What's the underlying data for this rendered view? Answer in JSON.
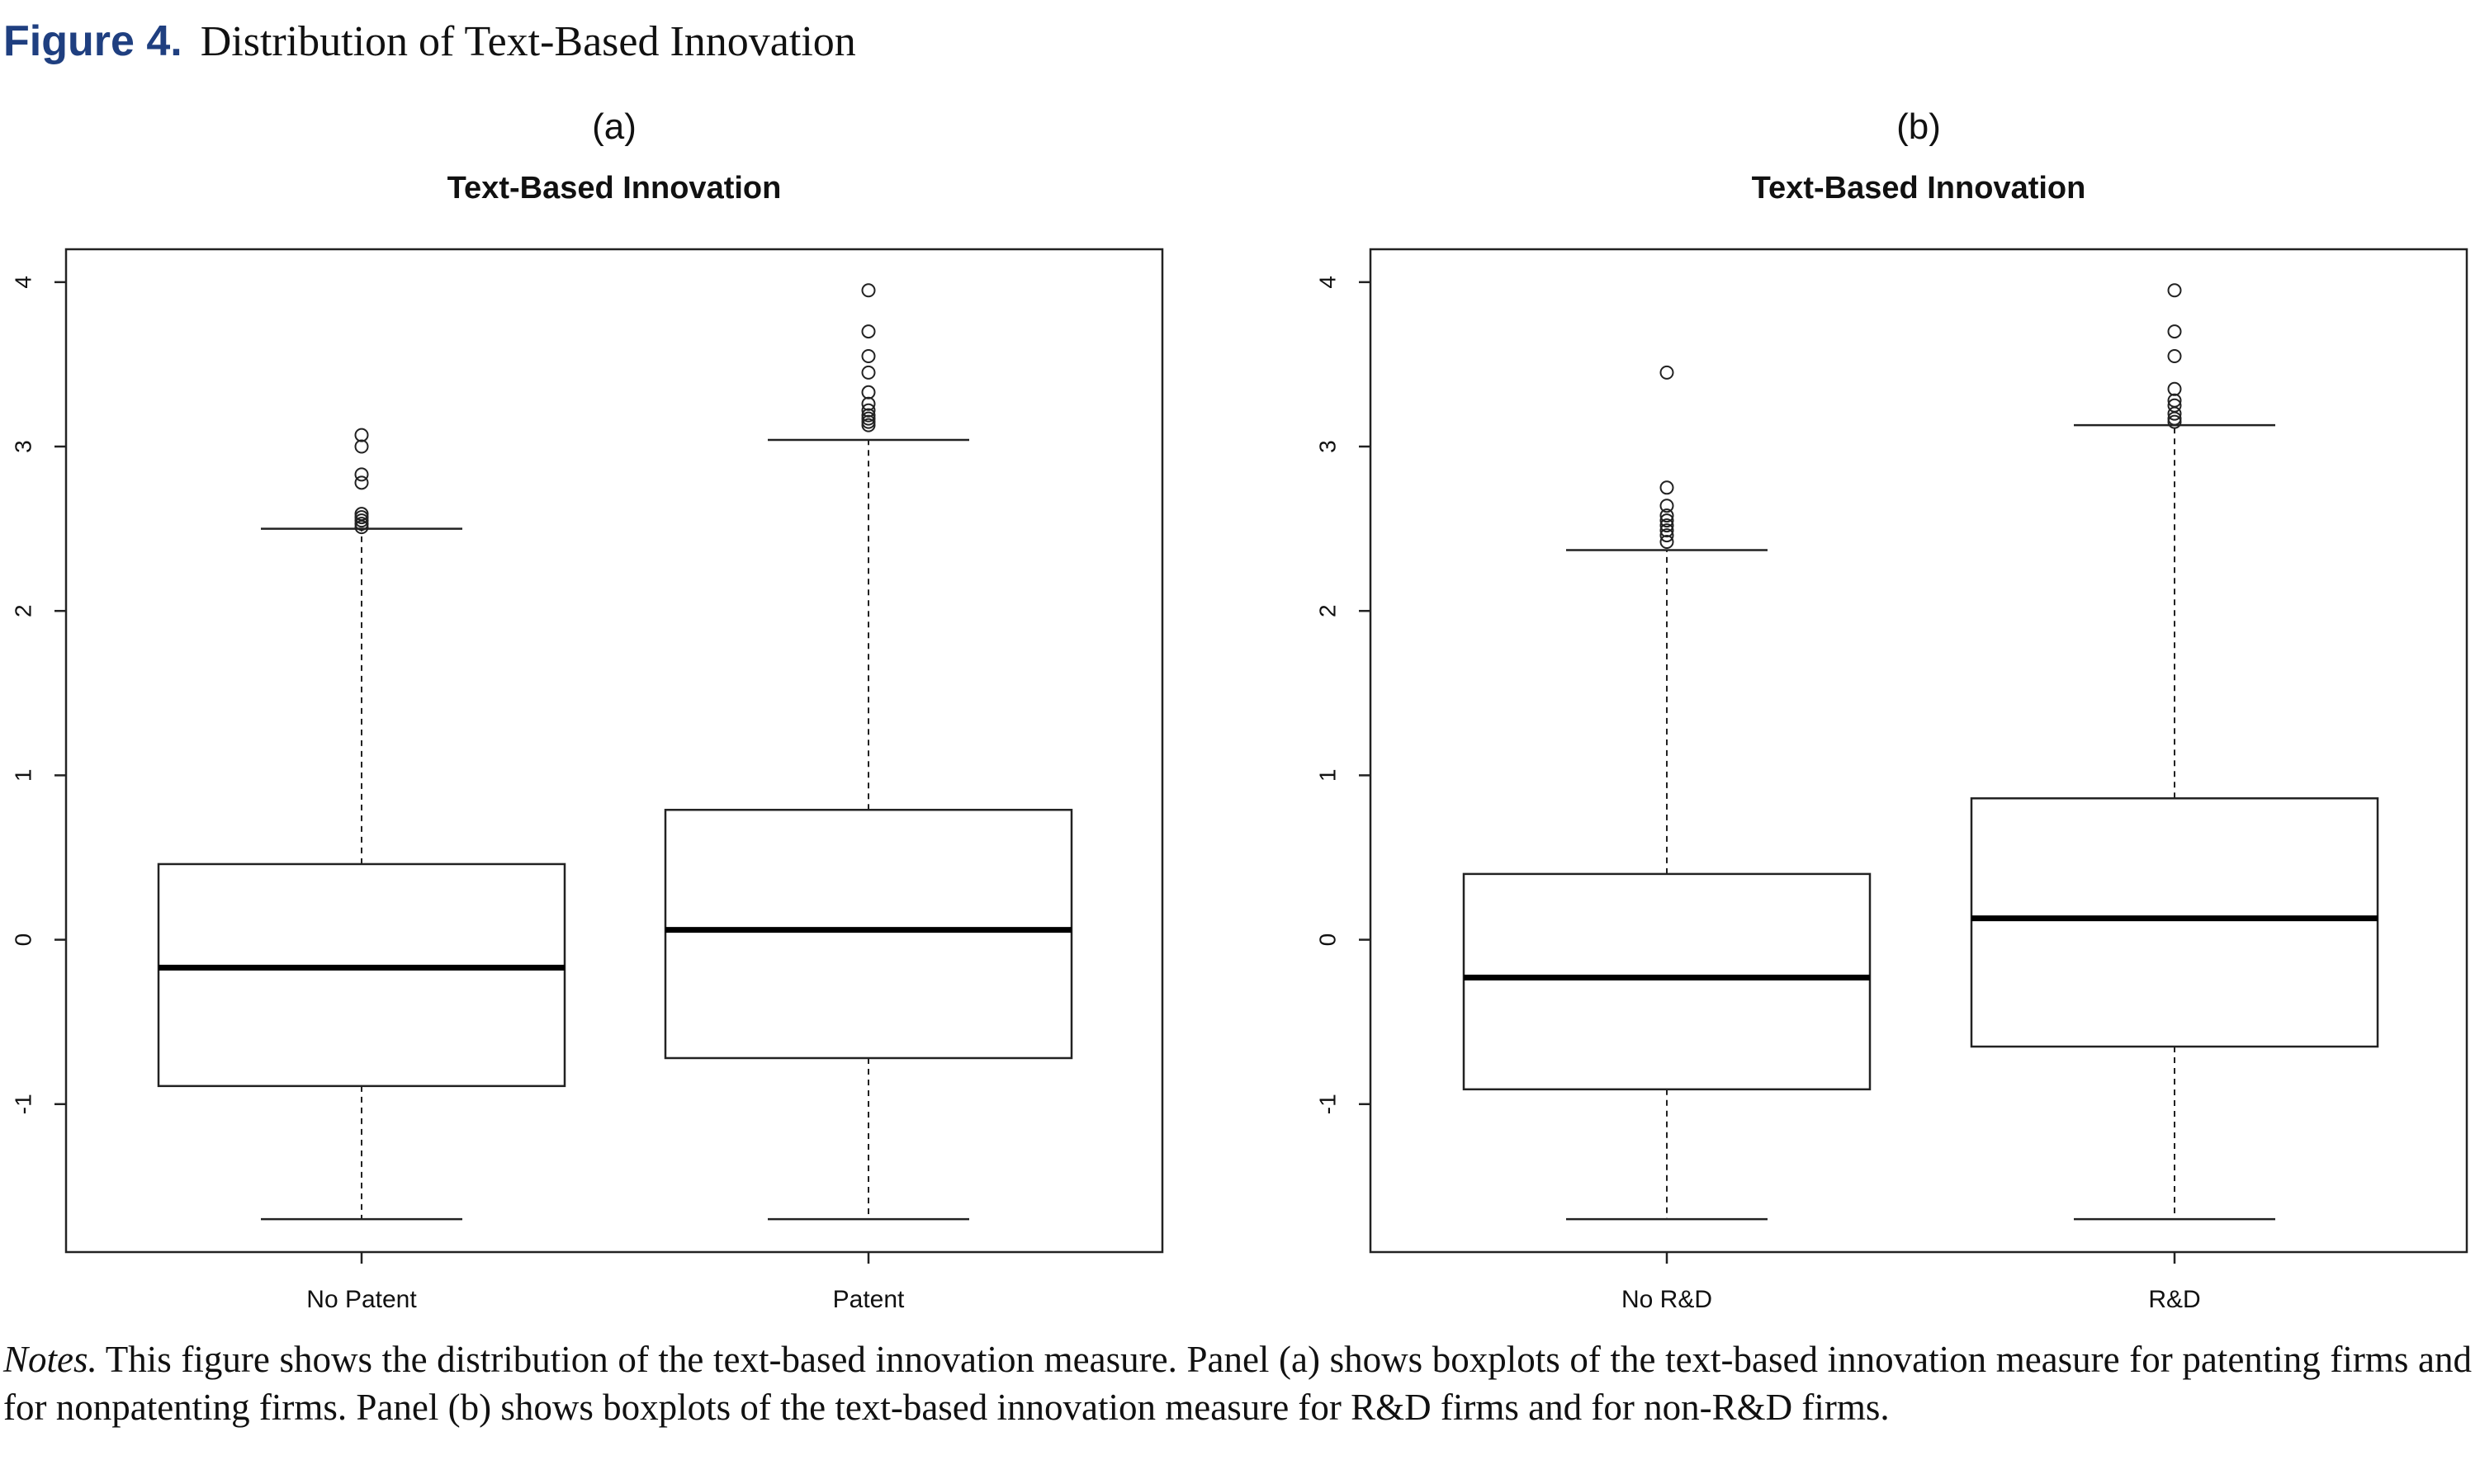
{
  "figure": {
    "label": "Figure 4.",
    "title": "Distribution of Text-Based Innovation"
  },
  "notes": {
    "label": "Notes.",
    "text": "This figure shows the distribution of the text-based innovation measure. Panel (a) shows boxplots of the text-based innovation measure for patenting firms and for nonpatenting firms. Panel (b) shows boxplots of the text-based innovation measure for R&D firms and for non-R&D firms."
  },
  "chart_data": [
    {
      "type": "boxplot",
      "panel_label": "(a)",
      "title": "Text-Based Innovation",
      "xlabel": "",
      "ylabel": "",
      "ylim": [
        -1.9,
        4.2
      ],
      "yticks": [
        -1,
        0,
        1,
        2,
        3,
        4
      ],
      "grid": false,
      "categories": [
        "No Patent",
        "Patent"
      ],
      "boxes": [
        {
          "category": "No Patent",
          "whisker_low": -1.7,
          "q1": -0.89,
          "median": -0.17,
          "q3": 0.46,
          "whisker_high": 2.5,
          "outliers": [
            2.51,
            2.53,
            2.55,
            2.57,
            2.59,
            2.78,
            2.83,
            3.0,
            3.07
          ]
        },
        {
          "category": "Patent",
          "whisker_low": -1.7,
          "q1": -0.72,
          "median": 0.06,
          "q3": 0.79,
          "whisker_high": 3.04,
          "outliers": [
            3.13,
            3.15,
            3.17,
            3.19,
            3.22,
            3.26,
            3.33,
            3.45,
            3.55,
            3.7,
            3.95
          ]
        }
      ]
    },
    {
      "type": "boxplot",
      "panel_label": "(b)",
      "title": "Text-Based Innovation",
      "xlabel": "",
      "ylabel": "",
      "ylim": [
        -1.9,
        4.2
      ],
      "yticks": [
        -1,
        0,
        1,
        2,
        3,
        4
      ],
      "grid": false,
      "categories": [
        "No R&D",
        "R&D"
      ],
      "boxes": [
        {
          "category": "No R&D",
          "whisker_low": -1.7,
          "q1": -0.91,
          "median": -0.23,
          "q3": 0.4,
          "whisker_high": 2.37,
          "outliers": [
            2.42,
            2.46,
            2.49,
            2.52,
            2.55,
            2.58,
            2.64,
            2.75,
            3.45
          ]
        },
        {
          "category": "R&D",
          "whisker_low": -1.7,
          "q1": -0.65,
          "median": 0.13,
          "q3": 0.86,
          "whisker_high": 3.13,
          "outliers": [
            3.15,
            3.17,
            3.2,
            3.25,
            3.28,
            3.35,
            3.55,
            3.7,
            3.95
          ]
        }
      ]
    }
  ]
}
